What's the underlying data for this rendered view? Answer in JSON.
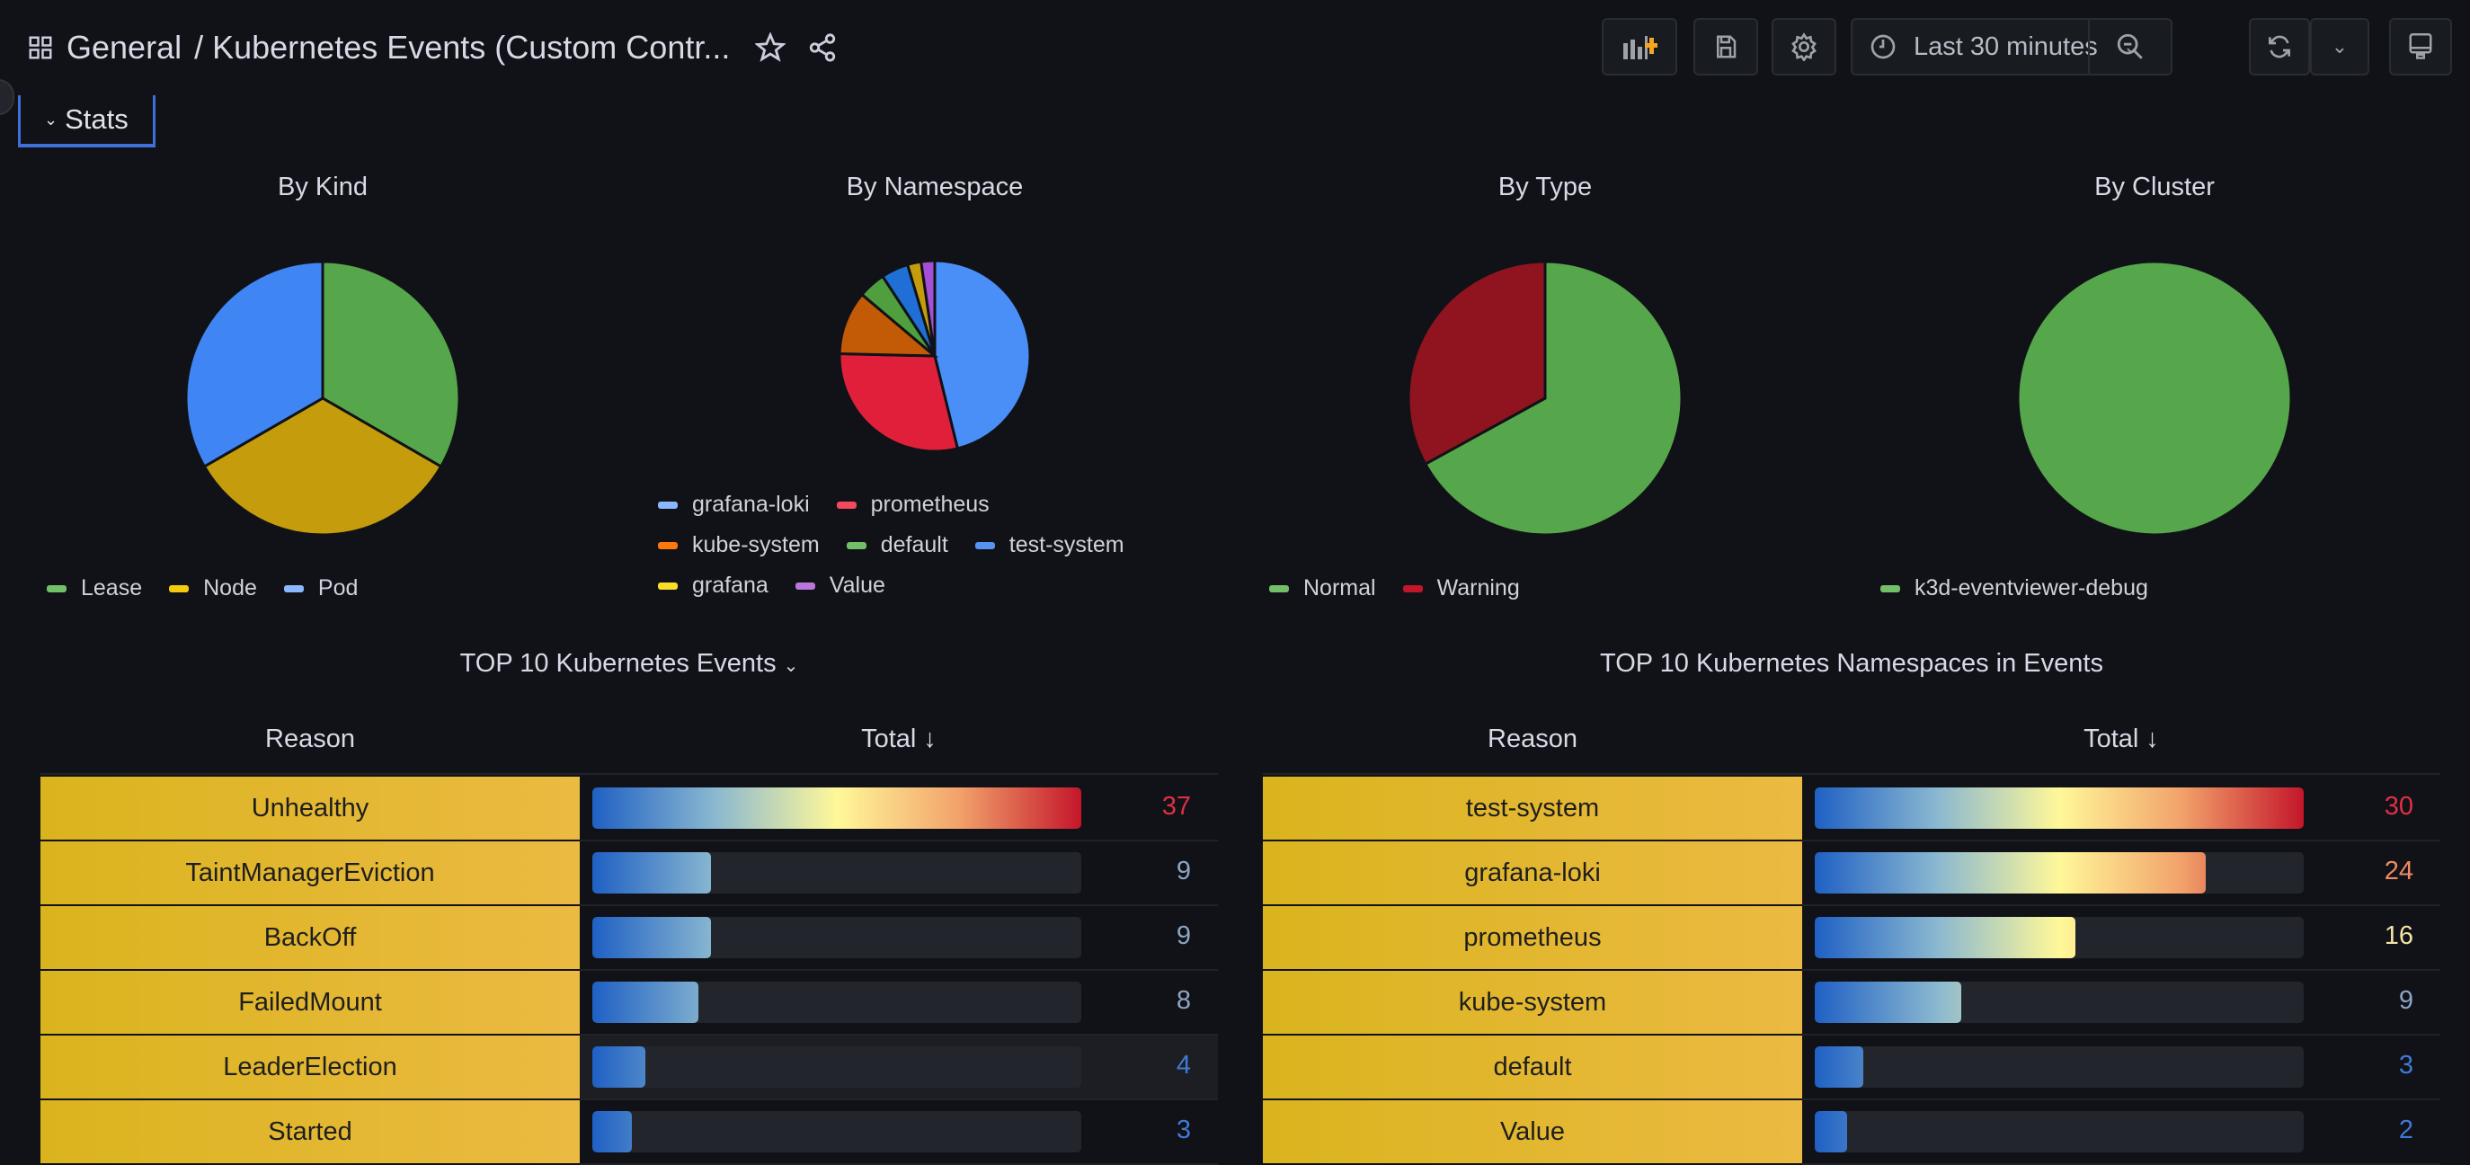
{
  "header": {
    "folder": "General",
    "title": "/ Kubernetes Events (Custom Contr...",
    "time_range": "Last 30 minutes"
  },
  "row": {
    "label": "Stats"
  },
  "colors": {
    "accent": "#3d71d9",
    "green": "#56a64b",
    "yellow": "#c4a000",
    "blue": "#3274d9",
    "red": "#c4162a"
  },
  "chart_data": [
    {
      "type": "pie",
      "title": "By Kind",
      "categories": [
        "Lease",
        "Node",
        "Pod"
      ],
      "values": [
        1,
        1,
        1
      ],
      "colors": [
        "#56a64b",
        "#c49c0c",
        "#3f86f4"
      ],
      "legend_colors": [
        "#73bf69",
        "#f2cc0c",
        "#8ab8ff"
      ]
    },
    {
      "type": "pie",
      "title": "By Namespace",
      "categories": [
        "grafana-loki",
        "prometheus",
        "kube-system",
        "default",
        "test-system",
        "grafana",
        "Value"
      ],
      "values": [
        30,
        19,
        7,
        3,
        3,
        1.5,
        1.5
      ],
      "colors": [
        "#4a8ff7",
        "#e0203a",
        "#c25a06",
        "#4f9f3f",
        "#1f6fd6",
        "#c49c0c",
        "#a34fd6"
      ],
      "legend_colors": [
        "#8ab8ff",
        "#f2495c",
        "#ff780a",
        "#73bf69",
        "#5794f2",
        "#fade2a",
        "#b877d9"
      ]
    },
    {
      "type": "pie",
      "title": "By Type",
      "categories": [
        "Normal",
        "Warning"
      ],
      "values": [
        67,
        33
      ],
      "colors": [
        "#56a64b",
        "#8f1420"
      ],
      "legend_colors": [
        "#73bf69",
        "#c4162a"
      ]
    },
    {
      "type": "pie",
      "title": "By Cluster",
      "categories": [
        "k3d-eventviewer-debug"
      ],
      "values": [
        1
      ],
      "colors": [
        "#56a64b"
      ],
      "legend_colors": [
        "#73bf69"
      ]
    }
  ],
  "tables": [
    {
      "title": "TOP 10 Kubernetes Events",
      "col_reason": "Reason",
      "col_total": "Total ↓",
      "max": 37,
      "rows": [
        {
          "reason": "Unhealthy",
          "total": "37",
          "color": "#e02f44"
        },
        {
          "reason": "TaintManagerEviction",
          "total": "9",
          "color": "#8aa6c4"
        },
        {
          "reason": "BackOff",
          "total": "9",
          "color": "#8aa6c4"
        },
        {
          "reason": "FailedMount",
          "total": "8",
          "color": "#8aa6c4"
        },
        {
          "reason": "LeaderElection",
          "total": "4",
          "color": "#3f7ad6"
        },
        {
          "reason": "Started",
          "total": "3",
          "color": "#3f7ad6"
        }
      ]
    },
    {
      "title": "TOP 10 Kubernetes Namespaces in Events",
      "col_reason": "Reason",
      "col_total": "Total ↓",
      "max": 30,
      "rows": [
        {
          "reason": "test-system",
          "total": "30",
          "color": "#e02f44"
        },
        {
          "reason": "grafana-loki",
          "total": "24",
          "color": "#ef8a63"
        },
        {
          "reason": "prometheus",
          "total": "16",
          "color": "#f2e4a6"
        },
        {
          "reason": "kube-system",
          "total": "9",
          "color": "#8aa6c4"
        },
        {
          "reason": "default",
          "total": "3",
          "color": "#3f7ad6"
        },
        {
          "reason": "Value",
          "total": "2",
          "color": "#3f7ad6"
        }
      ]
    }
  ]
}
